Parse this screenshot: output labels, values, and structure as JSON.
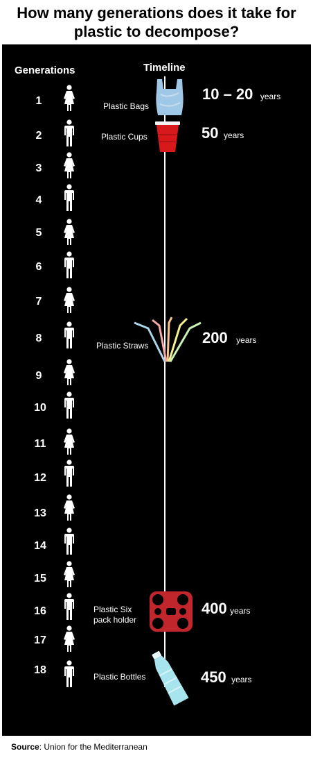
{
  "title": "How many generations does it take for plastic to decompose?",
  "headers": {
    "generations": "Generations",
    "timeline": "Timeline"
  },
  "generations": [
    "1",
    "2",
    "3",
    "4",
    "5",
    "6",
    "7",
    "8",
    "9",
    "10",
    "11",
    "12",
    "13",
    "14",
    "15",
    "16",
    "17",
    "18"
  ],
  "items": [
    {
      "label": "Plastic Bags",
      "years_value": "10 – 20",
      "years_unit": "years",
      "icon": "plastic-bag-icon"
    },
    {
      "label": "Plastic Cups",
      "years_value": "50",
      "years_unit": "years",
      "icon": "plastic-cup-icon"
    },
    {
      "label": "Plastic Straws",
      "years_value": "200",
      "years_unit": "years",
      "icon": "plastic-straws-icon"
    },
    {
      "label_line1": "Plastic Six",
      "label_line2": "pack holder",
      "years_value": "400",
      "years_unit": "years",
      "icon": "six-pack-holder-icon"
    },
    {
      "label": "Plastic Bottles",
      "years_value": "450",
      "years_unit": "years",
      "icon": "plastic-bottle-icon"
    }
  ],
  "source": {
    "prefix": "Source",
    "text": ": Union for the Mediterranean"
  },
  "colors": {
    "background": "#000000",
    "text": "#ffffff",
    "cup": "#d7191c",
    "bag": "#9fc7e6",
    "six_pack": "#c0262b",
    "bottle": "#a8e4ee"
  }
}
